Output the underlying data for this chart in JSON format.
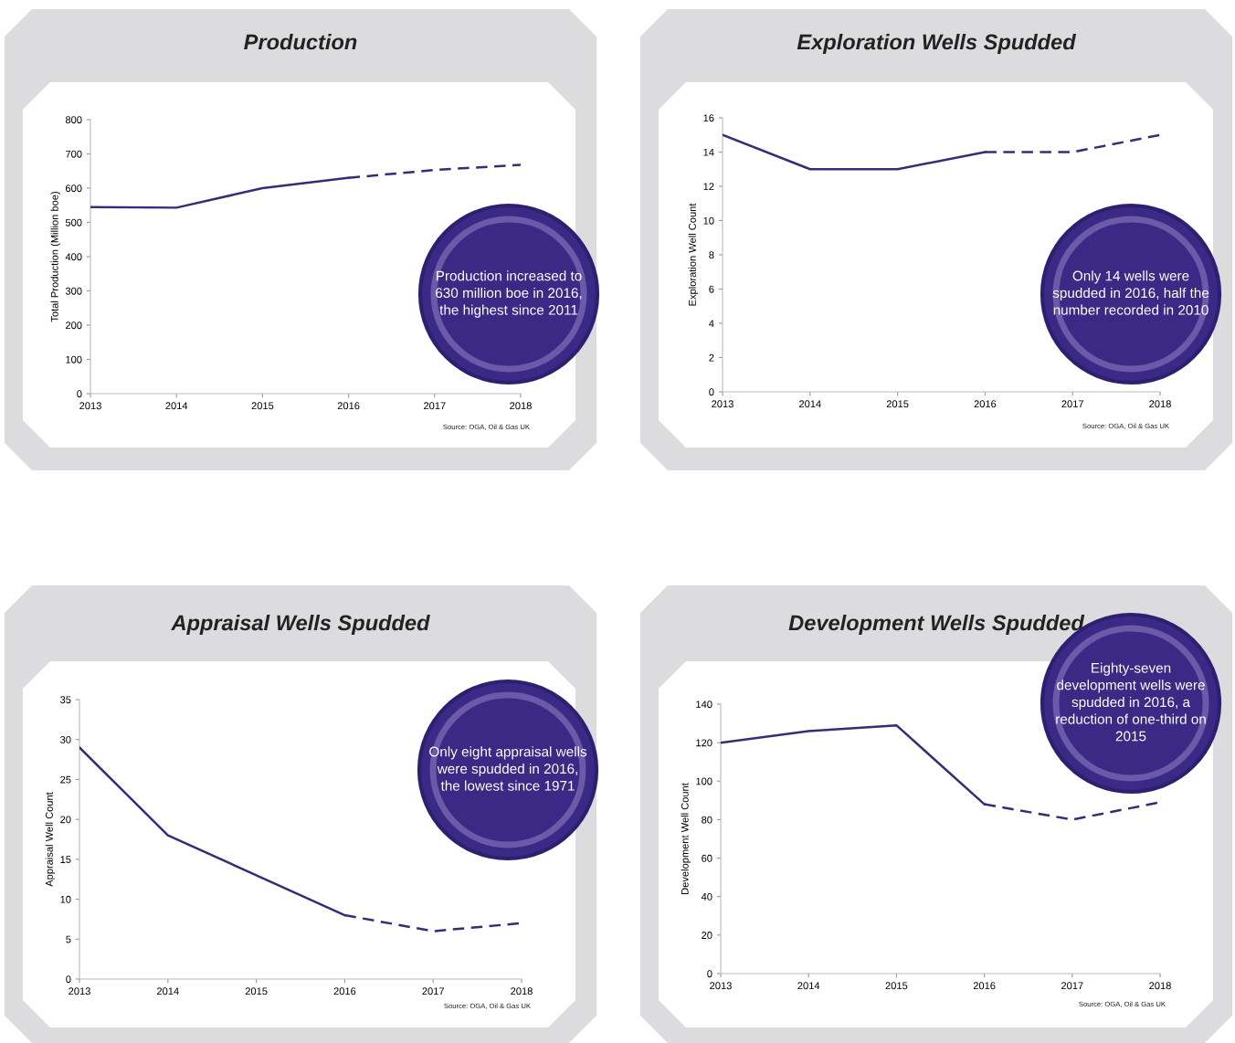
{
  "chart_data": [
    {
      "type": "line",
      "title": "Production",
      "ylabel": "Total Production (Million boe)",
      "x": [
        2013,
        2014,
        2015,
        2016,
        2017,
        2018
      ],
      "xlim": [
        2013,
        2018
      ],
      "xticks": [
        2013,
        2014,
        2015,
        2016,
        2017,
        2018
      ],
      "ylim": [
        0,
        800
      ],
      "yticks": [
        0,
        100,
        200,
        300,
        400,
        500,
        600,
        700,
        800
      ],
      "grid": false,
      "legend": false,
      "series": [
        {
          "color": "#3b2a78",
          "line_style": "solid",
          "values": [
            545,
            543,
            600,
            630,
            null,
            null
          ]
        },
        {
          "color": "#3b2a78",
          "line_style": "dashed",
          "values": [
            null,
            null,
            null,
            630,
            653,
            668
          ]
        }
      ],
      "annotations": [
        "Production increased to 630 million boe in 2016, the highest since 2011",
        "Source: OGA, Oil & Gas UK"
      ]
    },
    {
      "type": "line",
      "title": "Exploration Wells Spudded",
      "ylabel": "Exploration Well Count",
      "x": [
        2013,
        2014,
        2015,
        2016,
        2017,
        2018
      ],
      "xlim": [
        2013,
        2018
      ],
      "xticks": [
        2013,
        2014,
        2015,
        2016,
        2017,
        2018
      ],
      "ylim": [
        0,
        16
      ],
      "yticks": [
        0,
        2,
        4,
        6,
        8,
        10,
        12,
        14,
        16
      ],
      "grid": false,
      "legend": false,
      "series": [
        {
          "color": "#3b2a78",
          "line_style": "solid",
          "values": [
            15,
            13,
            13,
            14,
            null,
            null
          ]
        },
        {
          "color": "#3b2a78",
          "line_style": "dashed",
          "values": [
            null,
            null,
            null,
            14,
            14,
            15
          ]
        }
      ],
      "annotations": [
        "Only 14 wells were spudded in 2016, half the number recorded in 2010",
        "Source: OGA, Oil & Gas UK"
      ]
    },
    {
      "type": "line",
      "title": "Appraisal Wells Spudded",
      "ylabel": "Appraisal Well Count",
      "x": [
        2013,
        2014,
        2015,
        2016,
        2017,
        2018
      ],
      "xlim": [
        2013,
        2018
      ],
      "xticks": [
        2013,
        2014,
        2015,
        2016,
        2017,
        2018
      ],
      "ylim": [
        0,
        35
      ],
      "yticks": [
        0,
        5,
        10,
        15,
        20,
        25,
        30,
        35
      ],
      "grid": false,
      "legend": false,
      "series": [
        {
          "color": "#3b2a78",
          "line_style": "solid",
          "values": [
            29,
            18,
            13,
            8,
            null,
            null
          ]
        },
        {
          "color": "#3b2a78",
          "line_style": "dashed",
          "values": [
            null,
            null,
            null,
            8,
            6,
            7
          ]
        }
      ],
      "annotations": [
        "Only eight appraisal wells were spudded in 2016, the lowest since 1971",
        "Source: OGA, Oil & Gas UK"
      ]
    },
    {
      "type": "line",
      "title": "Development Wells Spudded",
      "ylabel": "Development Well Count",
      "x": [
        2013,
        2014,
        2015,
        2016,
        2017,
        2018
      ],
      "xlim": [
        2013,
        2018
      ],
      "xticks": [
        2013,
        2014,
        2015,
        2016,
        2017,
        2018
      ],
      "ylim": [
        0,
        140
      ],
      "yticks": [
        0,
        20,
        40,
        60,
        80,
        100,
        120,
        140
      ],
      "grid": false,
      "legend": false,
      "series": [
        {
          "color": "#3b2a78",
          "line_style": "solid",
          "values": [
            120,
            126,
            129,
            88,
            null,
            null
          ]
        },
        {
          "color": "#3b2a78",
          "line_style": "dashed",
          "values": [
            null,
            null,
            null,
            88,
            80,
            89
          ]
        }
      ],
      "annotations": [
        "Eighty-seven development wells were spudded in 2016, a reduction of one-third on 2015",
        "Source: OGA, Oil & Gas UK"
      ]
    }
  ]
}
